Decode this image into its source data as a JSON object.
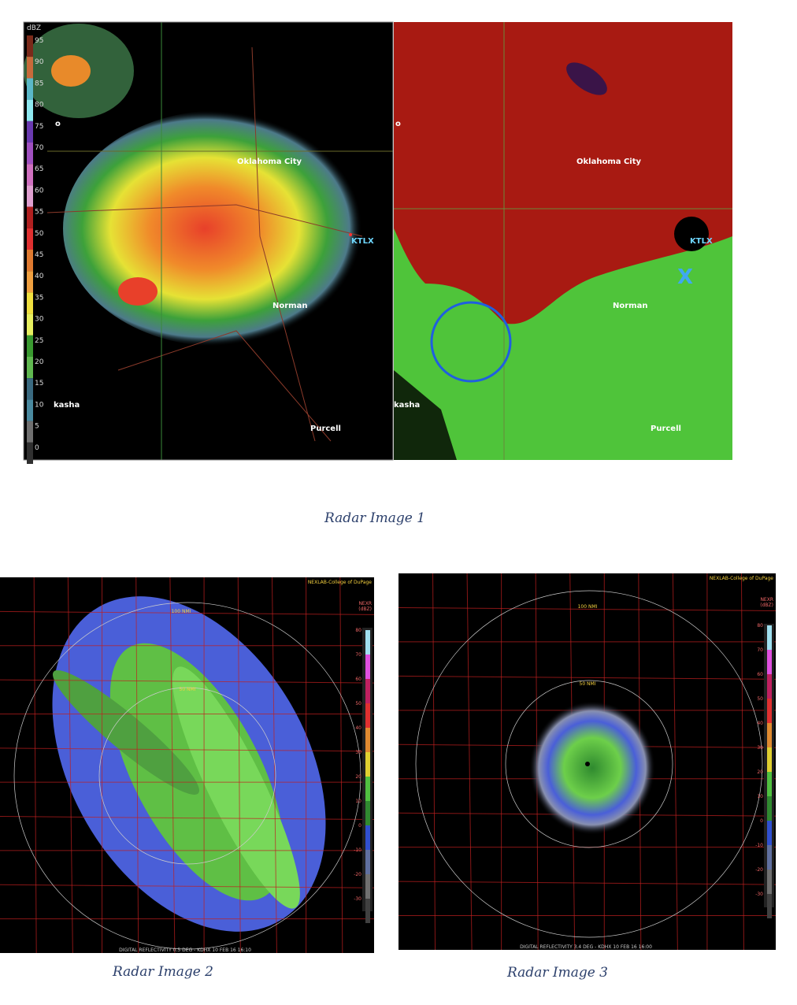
{
  "figures": [
    {
      "caption": "Radar Image 1",
      "reflectivity_panel": {
        "unit": "dBZ",
        "scale_labels": [
          95,
          90,
          85,
          80,
          75,
          70,
          65,
          60,
          55,
          50,
          45,
          40,
          35,
          30,
          25,
          20,
          15,
          10,
          5,
          0
        ],
        "places": [
          "Oklahoma City",
          "KTLX",
          "Norman",
          "Purcell",
          "kasha",
          "o"
        ]
      },
      "velocity_panel": {
        "places": [
          "Oklahoma City",
          "KTLX",
          "Norman",
          "Purcell",
          "kasha",
          "o"
        ],
        "marker": "X"
      }
    },
    {
      "caption": "Radar Image 2",
      "credit": "NEXLAB-College of DuPage",
      "rings": [
        "100 NMI",
        "50 NMI"
      ],
      "product": "NEXR",
      "unit": "(dBZ)",
      "scale_labels": [
        80,
        70,
        60,
        50,
        40,
        30,
        20,
        10,
        0,
        -10,
        -20,
        -30
      ],
      "footer": "DIGITAL REFLECTIVITY 0.5 DEG - KDHX 10 FEB 16 16:10"
    },
    {
      "caption": "Radar Image 3",
      "credit": "NEXLAB-College of DuPage",
      "rings": [
        "100 NMI",
        "50 NMI"
      ],
      "product": "NEXR",
      "unit": "(dBZ)",
      "scale_labels": [
        80,
        70,
        60,
        50,
        40,
        30,
        20,
        10,
        0,
        -10,
        -20,
        -30
      ],
      "footer": "DIGITAL REFLECTIVITY 3.4 DEG - KDHX 10 FEB 16 16:00"
    }
  ]
}
